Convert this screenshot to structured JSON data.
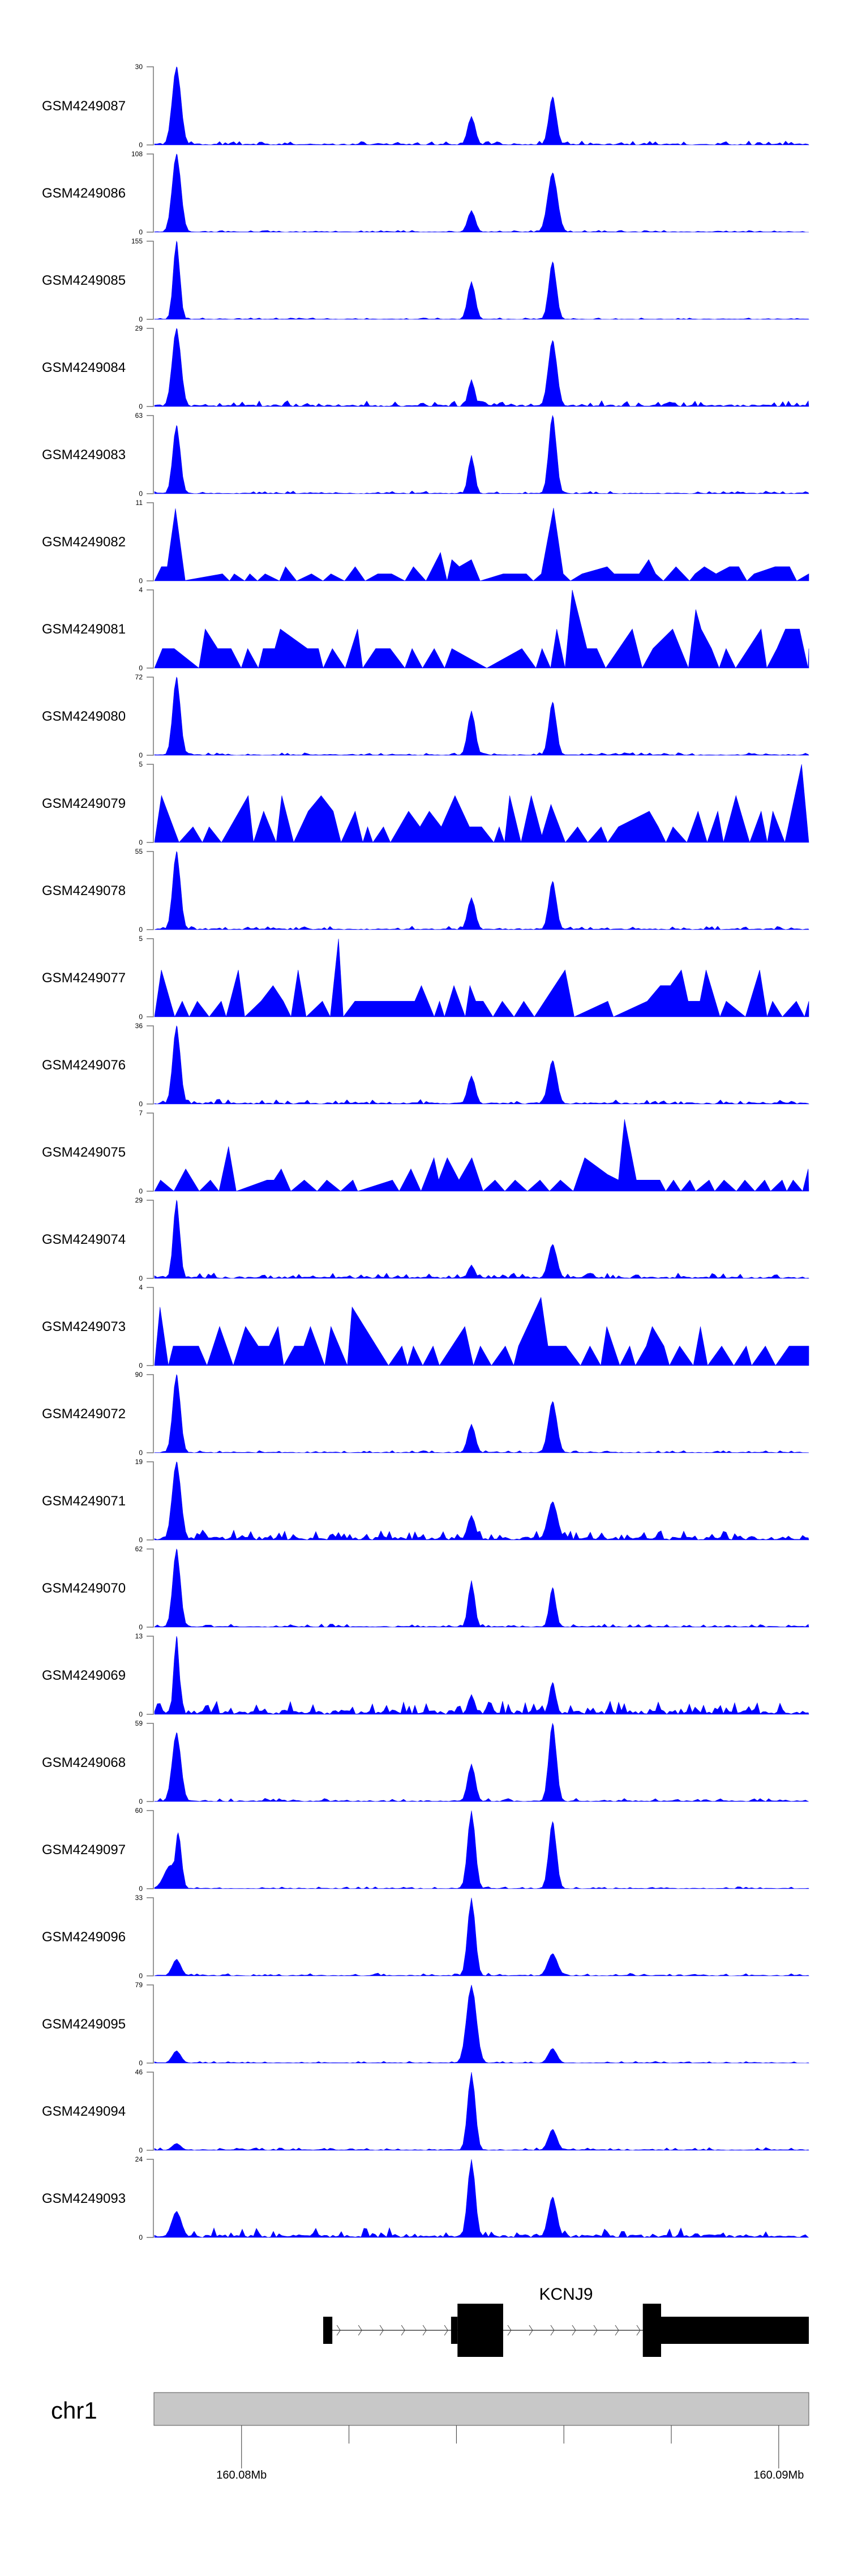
{
  "chart_data": {
    "type": "area",
    "title": "",
    "xlabel": "",
    "ylabel": "",
    "fill_color": "#0000ff",
    "xlim_mb": [
      160.07838,
      160.09056
    ],
    "peak_positions_mb": {
      "A": 160.07879,
      "B": 160.08428,
      "C": 160.08579
    },
    "tracks": [
      {
        "name": "GSM4249087",
        "ymax": 30,
        "ymin": 0,
        "sparse": false,
        "bg": 1.6,
        "peaks": [
          [
            160.07879,
            30,
            0.08
          ],
          [
            160.08428,
            11,
            0.07
          ],
          [
            160.08579,
            18.5,
            0.07
          ]
        ]
      },
      {
        "name": "GSM4249086",
        "ymax": 108,
        "ymin": 0,
        "sparse": false,
        "bg": 2.5,
        "peaks": [
          [
            160.07879,
            108,
            0.08
          ],
          [
            160.08428,
            30,
            0.07
          ],
          [
            160.08579,
            82,
            0.09
          ]
        ]
      },
      {
        "name": "GSM4249085",
        "ymax": 155,
        "ymin": 0,
        "sparse": false,
        "bg": 3,
        "peaks": [
          [
            160.07879,
            155,
            0.06
          ],
          [
            160.08428,
            75,
            0.07
          ],
          [
            160.08579,
            114,
            0.07
          ]
        ]
      },
      {
        "name": "GSM4249084",
        "ymax": 29,
        "ymin": 0,
        "sparse": false,
        "bg": 2.2,
        "peaks": [
          [
            160.07879,
            29,
            0.08
          ],
          [
            160.08428,
            10,
            0.06
          ],
          [
            160.08579,
            24.5,
            0.08
          ]
        ]
      },
      {
        "name": "GSM4249083",
        "ymax": 63,
        "ymin": 0,
        "sparse": false,
        "bg": 2.2,
        "peaks": [
          [
            160.07879,
            55,
            0.07
          ],
          [
            160.08428,
            31,
            0.06
          ],
          [
            160.08579,
            63,
            0.07
          ]
        ]
      },
      {
        "name": "GSM4249082",
        "ymax": 11,
        "ymin": 0,
        "sparse": true,
        "bg": 5,
        "peaks": [
          [
            160.07879,
            11,
            0.05
          ],
          [
            160.08579,
            11,
            0.05
          ]
        ]
      },
      {
        "name": "GSM4249081",
        "ymax": 4,
        "ymin": 0,
        "sparse": true,
        "bg": 4,
        "peaks": []
      },
      {
        "name": "GSM4249080",
        "ymax": 72,
        "ymin": 0,
        "sparse": false,
        "bg": 2.5,
        "peaks": [
          [
            160.07879,
            72,
            0.07
          ],
          [
            160.08428,
            41,
            0.07
          ],
          [
            160.08579,
            49,
            0.07
          ]
        ]
      },
      {
        "name": "GSM4249079",
        "ymax": 5,
        "ymin": 0,
        "sparse": true,
        "bg": 5,
        "peaks": [
          [
            160.0857,
            5,
            0.05
          ]
        ]
      },
      {
        "name": "GSM4249078",
        "ymax": 55,
        "ymin": 0,
        "sparse": false,
        "bg": 2.5,
        "peaks": [
          [
            160.07879,
            55,
            0.07
          ],
          [
            160.08428,
            22.6,
            0.07
          ],
          [
            160.08579,
            34,
            0.07
          ]
        ]
      },
      {
        "name": "GSM4249077",
        "ymax": 5,
        "ymin": 0,
        "sparse": true,
        "bg": 5,
        "peaks": []
      },
      {
        "name": "GSM4249076",
        "ymax": 36,
        "ymin": 0,
        "sparse": false,
        "bg": 2.2,
        "peaks": [
          [
            160.07879,
            36,
            0.07
          ],
          [
            160.08428,
            13,
            0.07
          ],
          [
            160.08579,
            20,
            0.08
          ]
        ]
      },
      {
        "name": "GSM4249075",
        "ymax": 7,
        "ymin": 0,
        "sparse": true,
        "bg": 4,
        "peaks": [
          [
            160.0869,
            7,
            0.05
          ],
          [
            160.08715,
            7,
            0.05
          ]
        ]
      },
      {
        "name": "GSM4249074",
        "ymax": 29,
        "ymin": 0,
        "sparse": false,
        "bg": 2,
        "peaks": [
          [
            160.07879,
            29,
            0.06
          ],
          [
            160.08428,
            5,
            0.06
          ],
          [
            160.08579,
            12.6,
            0.08
          ]
        ]
      },
      {
        "name": "GSM4249073",
        "ymax": 4,
        "ymin": 0,
        "sparse": true,
        "bg": 3,
        "peaks": [
          [
            160.0856,
            4,
            0.05
          ]
        ]
      },
      {
        "name": "GSM4249072",
        "ymax": 90,
        "ymin": 0,
        "sparse": false,
        "bg": 2.5,
        "peaks": [
          [
            160.07879,
            90,
            0.07
          ],
          [
            160.08428,
            33,
            0.07
          ],
          [
            160.08579,
            59,
            0.08
          ]
        ]
      },
      {
        "name": "GSM4249071",
        "ymax": 19,
        "ymin": 0,
        "sparse": false,
        "bg": 2.5,
        "peaks": [
          [
            160.07879,
            19,
            0.08
          ],
          [
            160.08428,
            6,
            0.07
          ],
          [
            160.08579,
            9.3,
            0.09
          ]
        ]
      },
      {
        "name": "GSM4249070",
        "ymax": 62,
        "ymin": 0,
        "sparse": false,
        "bg": 2.5,
        "peaks": [
          [
            160.07879,
            62,
            0.07
          ],
          [
            160.08428,
            37,
            0.06
          ],
          [
            160.08579,
            31.4,
            0.06
          ]
        ]
      },
      {
        "name": "GSM4249069",
        "ymax": 13,
        "ymin": 0,
        "sparse": false,
        "bg": 2.2,
        "peaks": [
          [
            160.07879,
            13,
            0.05
          ],
          [
            160.08428,
            3.3,
            0.06
          ],
          [
            160.08579,
            5.3,
            0.06
          ]
        ]
      },
      {
        "name": "GSM4249068",
        "ymax": 59,
        "ymin": 0,
        "sparse": false,
        "bg": 2.5,
        "peaks": [
          [
            160.07879,
            52,
            0.08
          ],
          [
            160.08428,
            28.4,
            0.07
          ],
          [
            160.08579,
            59,
            0.07
          ]
        ]
      },
      {
        "name": "GSM4249097",
        "ymax": 60,
        "ymin": 0,
        "sparse": false,
        "bg": 1.5,
        "peaks": [
          [
            160.07868,
            18,
            0.12
          ],
          [
            160.07882,
            43,
            0.06
          ],
          [
            160.08428,
            60,
            0.07
          ],
          [
            160.08579,
            51.5,
            0.07
          ]
        ]
      },
      {
        "name": "GSM4249096",
        "ymax": 33,
        "ymin": 0,
        "sparse": false,
        "bg": 1.2,
        "peaks": [
          [
            160.07879,
            7,
            0.08
          ],
          [
            160.08428,
            33,
            0.07
          ],
          [
            160.08579,
            9.4,
            0.09
          ]
        ]
      },
      {
        "name": "GSM4249095",
        "ymax": 79,
        "ymin": 0,
        "sparse": false,
        "bg": 1.8,
        "peaks": [
          [
            160.07879,
            12.4,
            0.08
          ],
          [
            160.08428,
            79,
            0.09
          ],
          [
            160.08579,
            14.7,
            0.08
          ]
        ]
      },
      {
        "name": "GSM4249094",
        "ymax": 46,
        "ymin": 0,
        "sparse": false,
        "bg": 1.6,
        "peaks": [
          [
            160.07879,
            4,
            0.08
          ],
          [
            160.08428,
            46,
            0.07
          ],
          [
            160.08579,
            12.3,
            0.08
          ]
        ]
      },
      {
        "name": "GSM4249093",
        "ymax": 24,
        "ymin": 0,
        "sparse": false,
        "bg": 3,
        "peaks": [
          [
            160.07879,
            8,
            0.09
          ],
          [
            160.08428,
            24,
            0.07
          ],
          [
            160.08579,
            12.4,
            0.08
          ]
        ]
      }
    ],
    "gene": {
      "name": "KCNJ9",
      "strand": "+",
      "start": 160.08152,
      "end": 160.09056,
      "exons": [
        {
          "start": 160.08152,
          "end": 160.08169,
          "type": "utr"
        },
        {
          "start": 160.0839,
          "end": 160.08402,
          "type": "utr"
        },
        {
          "start": 160.08402,
          "end": 160.08487,
          "type": "cds"
        },
        {
          "start": 160.08747,
          "end": 160.08781,
          "type": "cds"
        },
        {
          "start": 160.08781,
          "end": 160.09056,
          "type": "utr"
        }
      ]
    },
    "axis": {
      "chromosome": "chr1",
      "ticks_mb": [
        160.08,
        160.082,
        160.084,
        160.086,
        160.088,
        160.09
      ],
      "tick_labels": [
        {
          "value": 160.08,
          "label": "160.08Mb"
        },
        {
          "value": 160.09,
          "label": "160.09Mb"
        }
      ]
    }
  }
}
